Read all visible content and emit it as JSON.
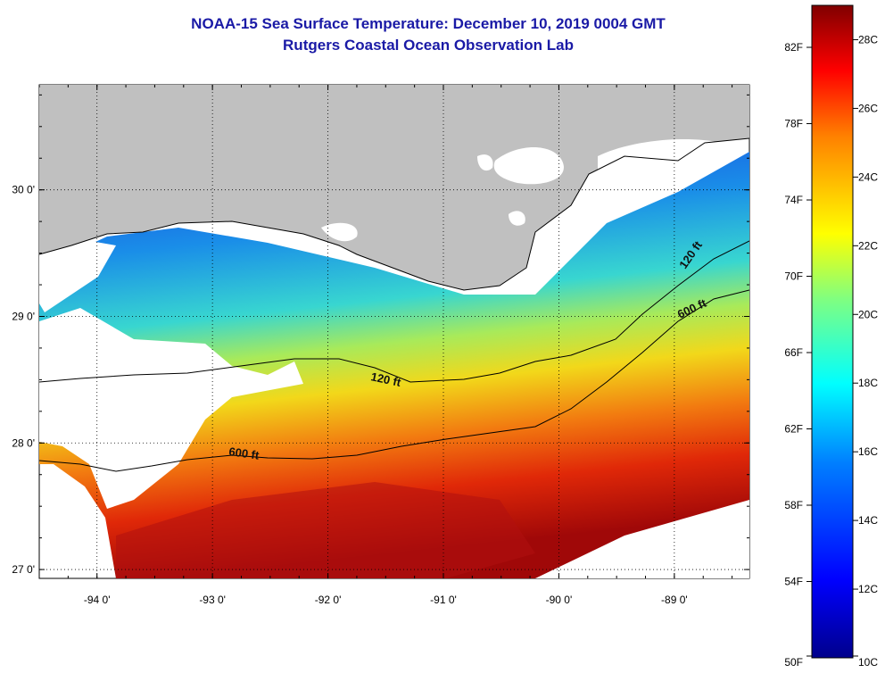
{
  "title_line1": "NOAA-15 Sea Surface Temperature:  December 10, 2019 0004 GMT",
  "title_line2": "Rutgers Coastal Ocean Observation Lab",
  "map": {
    "lon_ticks": [
      {
        "value": -94,
        "label": "-94 0'"
      },
      {
        "value": -93,
        "label": "-93 0'"
      },
      {
        "value": -92,
        "label": "-92 0'"
      },
      {
        "value": -91,
        "label": "-91 0'"
      },
      {
        "value": -90,
        "label": "-90 0'"
      },
      {
        "value": -89,
        "label": "-89 0'"
      }
    ],
    "lat_ticks": [
      {
        "value": 30,
        "label": "30 0'"
      },
      {
        "value": 29,
        "label": "29 0'"
      },
      {
        "value": 28,
        "label": "28 0'"
      },
      {
        "value": 27,
        "label": "27 0'"
      }
    ],
    "lon_range": [
      -94.5,
      -88.35
    ],
    "lat_range": [
      26.93,
      30.83
    ],
    "land_color": "#c0c0c0",
    "grid": "dotted",
    "contour_labels": [
      "120 ft",
      "600 ft",
      "120 ft",
      "600 ft"
    ]
  },
  "colorbar": {
    "min_c": 10,
    "max_c": 29,
    "colors": [
      "#00008c",
      "#0000ff",
      "#0080ff",
      "#00ffff",
      "#80ff80",
      "#ffff00",
      "#ff8000",
      "#ff0000",
      "#800000"
    ],
    "fahrenheit_labels": [
      "82F",
      "78F",
      "74F",
      "70F",
      "66F",
      "62F",
      "58F",
      "54F",
      "50F"
    ],
    "celsius_labels": [
      "28C",
      "26C",
      "24C",
      "22C",
      "20C",
      "18C",
      "16C",
      "14C",
      "12C",
      "10C"
    ]
  }
}
